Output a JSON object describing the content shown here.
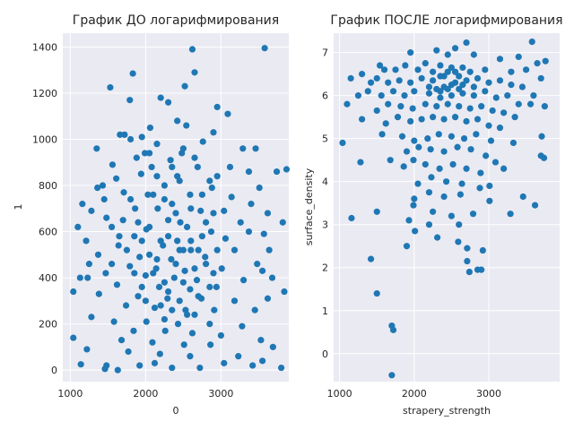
{
  "point_color": "#1f77b4",
  "chart_data": [
    {
      "type": "scatter",
      "title": "График ДО логарифмирования",
      "xlabel": "0",
      "ylabel": "1",
      "xlim": [
        900,
        3900
      ],
      "ylim": [
        -50,
        1460
      ],
      "xticks": [
        1000,
        2000,
        3000
      ],
      "yticks": [
        0,
        200,
        400,
        600,
        800,
        1000,
        1200,
        1400
      ],
      "grid": true,
      "points": [
        [
          3580,
          1395
        ],
        [
          2620,
          1390
        ],
        [
          2650,
          1290
        ],
        [
          1830,
          1285
        ],
        [
          1530,
          1225
        ],
        [
          2520,
          1230
        ],
        [
          2200,
          1180
        ],
        [
          1790,
          1170
        ],
        [
          2300,
          1160
        ],
        [
          2950,
          1140
        ],
        [
          1660,
          1020
        ],
        [
          1720,
          1020
        ],
        [
          2420,
          1080
        ],
        [
          2540,
          1060
        ],
        [
          3090,
          1110
        ],
        [
          2060,
          1050
        ],
        [
          2900,
          1030
        ],
        [
          1800,
          1000
        ],
        [
          2760,
          990
        ],
        [
          2150,
          980
        ],
        [
          1350,
          960
        ],
        [
          2480,
          940
        ],
        [
          3460,
          960
        ],
        [
          3290,
          960
        ],
        [
          1990,
          940
        ],
        [
          1880,
          920
        ],
        [
          2330,
          910
        ],
        [
          1560,
          890
        ],
        [
          2080,
          880
        ],
        [
          2690,
          880
        ],
        [
          3120,
          880
        ],
        [
          3370,
          860
        ],
        [
          3740,
          860
        ],
        [
          3870,
          870
        ],
        [
          1940,
          850
        ],
        [
          2420,
          840
        ],
        [
          1610,
          830
        ],
        [
          1430,
          800
        ],
        [
          1360,
          790
        ],
        [
          2250,
          800
        ],
        [
          2880,
          790
        ],
        [
          3510,
          790
        ],
        [
          1710,
          770
        ],
        [
          2030,
          760
        ],
        [
          1450,
          740
        ],
        [
          2590,
          760
        ],
        [
          3140,
          750
        ],
        [
          3400,
          720
        ],
        [
          1160,
          720
        ],
        [
          1280,
          690
        ],
        [
          1860,
          700
        ],
        [
          2160,
          700
        ],
        [
          2730,
          690
        ],
        [
          3040,
          690
        ],
        [
          3620,
          680
        ],
        [
          1480,
          660
        ],
        [
          1700,
          650
        ],
        [
          2300,
          650
        ],
        [
          2460,
          640
        ],
        [
          3260,
          640
        ],
        [
          3820,
          640
        ],
        [
          1100,
          620
        ],
        [
          1550,
          620
        ],
        [
          2010,
          610
        ],
        [
          2870,
          600
        ],
        [
          3370,
          600
        ],
        [
          3570,
          590
        ],
        [
          1850,
          580
        ],
        [
          2420,
          560
        ],
        [
          3060,
          570
        ],
        [
          1210,
          560
        ],
        [
          1640,
          540
        ],
        [
          2230,
          540
        ],
        [
          2600,
          520
        ],
        [
          3180,
          520
        ],
        [
          3640,
          520
        ],
        [
          1370,
          500
        ],
        [
          1920,
          490
        ],
        [
          2340,
          480
        ],
        [
          2790,
          490
        ],
        [
          3480,
          460
        ],
        [
          1250,
          460
        ],
        [
          1790,
          450
        ],
        [
          2140,
          440
        ],
        [
          2520,
          430
        ],
        [
          3010,
          440
        ],
        [
          3550,
          430
        ],
        [
          1470,
          420
        ],
        [
          2000,
          410
        ],
        [
          2380,
          400
        ],
        [
          2680,
          390
        ],
        [
          1130,
          400
        ],
        [
          1230,
          400
        ],
        [
          3300,
          390
        ],
        [
          3680,
          400
        ],
        [
          1620,
          370
        ],
        [
          2180,
          360
        ],
        [
          2590,
          350
        ],
        [
          2940,
          360
        ],
        [
          1040,
          340
        ],
        [
          3840,
          340
        ],
        [
          1380,
          330
        ],
        [
          1900,
          320
        ],
        [
          2290,
          310
        ],
        [
          2740,
          310
        ],
        [
          3620,
          310
        ],
        [
          3180,
          300
        ],
        [
          1740,
          280
        ],
        [
          2120,
          270
        ],
        [
          2530,
          260
        ],
        [
          2910,
          260
        ],
        [
          3450,
          260
        ],
        [
          1280,
          230
        ],
        [
          1580,
          210
        ],
        [
          2010,
          210
        ],
        [
          2430,
          200
        ],
        [
          2850,
          200
        ],
        [
          3280,
          190
        ],
        [
          1840,
          170
        ],
        [
          2260,
          170
        ],
        [
          2620,
          160
        ],
        [
          3000,
          150
        ],
        [
          3530,
          130
        ],
        [
          1040,
          140
        ],
        [
          1680,
          130
        ],
        [
          2090,
          120
        ],
        [
          2510,
          110
        ],
        [
          2860,
          110
        ],
        [
          3690,
          100
        ],
        [
          1220,
          90
        ],
        [
          1770,
          80
        ],
        [
          2190,
          70
        ],
        [
          2590,
          60
        ],
        [
          3230,
          60
        ],
        [
          3550,
          40
        ],
        [
          1140,
          25
        ],
        [
          1480,
          20
        ],
        [
          1920,
          20
        ],
        [
          2350,
          10
        ],
        [
          2720,
          10
        ],
        [
          1630,
          0
        ],
        [
          1460,
          5
        ],
        [
          2120,
          30
        ],
        [
          3040,
          30
        ],
        [
          3420,
          20
        ],
        [
          3800,
          10
        ],
        [
          1950,
          560
        ],
        [
          2050,
          620
        ],
        [
          2150,
          480
        ],
        [
          2250,
          380
        ],
        [
          2350,
          720
        ],
        [
          2450,
          520
        ],
        [
          2550,
          620
        ],
        [
          2650,
          440
        ],
        [
          2750,
          580
        ],
        [
          2850,
          360
        ],
        [
          2950,
          520
        ],
        [
          2100,
          420
        ],
        [
          2200,
          560
        ],
        [
          2300,
          340
        ],
        [
          2400,
          460
        ],
        [
          2500,
          380
        ],
        [
          2600,
          560
        ],
        [
          2700,
          320
        ],
        [
          2800,
          460
        ],
        [
          2900,
          680
        ],
        [
          2000,
          300
        ],
        [
          2100,
          760
        ],
        [
          2200,
          280
        ],
        [
          2300,
          580
        ],
        [
          2400,
          680
        ],
        [
          2500,
          520
        ],
        [
          2600,
          700
        ],
        [
          2700,
          520
        ],
        [
          2800,
          640
        ],
        [
          2900,
          420
        ],
        [
          2450,
          300
        ],
        [
          2350,
          260
        ],
        [
          2550,
          240
        ],
        [
          2250,
          220
        ],
        [
          2650,
          240
        ],
        [
          2050,
          500
        ],
        [
          1950,
          360
        ],
        [
          1850,
          420
        ],
        [
          1750,
          520
        ],
        [
          1650,
          580
        ],
        [
          1550,
          460
        ],
        [
          1900,
          640
        ],
        [
          1800,
          740
        ],
        [
          2750,
          760
        ],
        [
          2850,
          820
        ],
        [
          2950,
          840
        ],
        [
          2650,
          920
        ],
        [
          2500,
          960
        ],
        [
          2450,
          820
        ],
        [
          2350,
          880
        ],
        [
          2250,
          740
        ],
        [
          2150,
          840
        ],
        [
          2050,
          940
        ],
        [
          1950,
          1010
        ]
      ]
    },
    {
      "type": "scatter",
      "title": "График ПОСЛЕ логарифмирования",
      "xlabel": "strapery_strength",
      "ylabel": "surface_density",
      "xlim": [
        920,
        3950
      ],
      "ylim": [
        -0.65,
        7.45
      ],
      "xticks": [
        1000,
        2000,
        3000
      ],
      "yticks": [
        0,
        1,
        2,
        3,
        4,
        5,
        6,
        7
      ],
      "grid": true,
      "points": [
        [
          2700,
          7.23
        ],
        [
          3580,
          7.25
        ],
        [
          1950,
          7.0
        ],
        [
          2300,
          7.05
        ],
        [
          2450,
          6.95
        ],
        [
          2550,
          7.1
        ],
        [
          2800,
          6.95
        ],
        [
          3150,
          6.85
        ],
        [
          3400,
          6.9
        ],
        [
          3650,
          6.75
        ],
        [
          3760,
          6.8
        ],
        [
          1540,
          6.7
        ],
        [
          1600,
          6.6
        ],
        [
          1750,
          6.6
        ],
        [
          1880,
          6.7
        ],
        [
          2050,
          6.6
        ],
        [
          2150,
          6.75
        ],
        [
          2350,
          6.7
        ],
        [
          2650,
          6.65
        ],
        [
          2950,
          6.6
        ],
        [
          3300,
          6.55
        ],
        [
          3500,
          6.6
        ],
        [
          3700,
          6.4
        ],
        [
          1150,
          6.4
        ],
        [
          1300,
          6.5
        ],
        [
          1420,
          6.3
        ],
        [
          1500,
          6.4
        ],
        [
          1650,
          6.3
        ],
        [
          1800,
          6.35
        ],
        [
          1950,
          6.3
        ],
        [
          2100,
          6.4
        ],
        [
          2250,
          6.35
        ],
        [
          2400,
          6.45
        ],
        [
          2550,
          6.3
        ],
        [
          2700,
          6.35
        ],
        [
          2850,
          6.4
        ],
        [
          3000,
          6.3
        ],
        [
          3150,
          6.35
        ],
        [
          3300,
          6.25
        ],
        [
          3450,
          6.2
        ],
        [
          3600,
          6.0
        ],
        [
          1100,
          5.8
        ],
        [
          1250,
          6.0
        ],
        [
          1380,
          6.1
        ],
        [
          1560,
          6.0
        ],
        [
          1720,
          6.1
        ],
        [
          1870,
          6.0
        ],
        [
          2000,
          6.1
        ],
        [
          2200,
          6.05
        ],
        [
          2350,
          6.1
        ],
        [
          2500,
          6.0
        ],
        [
          2650,
          6.05
        ],
        [
          2800,
          6.0
        ],
        [
          2950,
          6.1
        ],
        [
          3100,
          5.95
        ],
        [
          3250,
          6.0
        ],
        [
          3400,
          5.8
        ],
        [
          3560,
          5.8
        ],
        [
          3750,
          5.75
        ],
        [
          1300,
          5.45
        ],
        [
          1500,
          5.65
        ],
        [
          1650,
          5.8
        ],
        [
          1820,
          5.75
        ],
        [
          1980,
          5.7
        ],
        [
          2150,
          5.8
        ],
        [
          2300,
          5.75
        ],
        [
          2450,
          5.8
        ],
        [
          2600,
          5.75
        ],
        [
          2750,
          5.7
        ],
        [
          2900,
          5.75
        ],
        [
          3050,
          5.65
        ],
        [
          3200,
          5.6
        ],
        [
          3350,
          5.5
        ],
        [
          1620,
          5.35
        ],
        [
          1780,
          5.5
        ],
        [
          1950,
          5.4
        ],
        [
          2100,
          5.45
        ],
        [
          2250,
          5.5
        ],
        [
          2400,
          5.45
        ],
        [
          2550,
          5.5
        ],
        [
          2700,
          5.4
        ],
        [
          2850,
          5.45
        ],
        [
          3000,
          5.3
        ],
        [
          3150,
          5.25
        ],
        [
          1040,
          4.9
        ],
        [
          1570,
          5.1
        ],
        [
          1840,
          5.05
        ],
        [
          2000,
          4.95
        ],
        [
          2180,
          5.0
        ],
        [
          2330,
          5.1
        ],
        [
          2500,
          5.05
        ],
        [
          2670,
          5.0
        ],
        [
          2830,
          5.1
        ],
        [
          3030,
          4.95
        ],
        [
          3330,
          4.9
        ],
        [
          3710,
          5.05
        ],
        [
          1680,
          4.5
        ],
        [
          1900,
          4.7
        ],
        [
          2060,
          4.8
        ],
        [
          2220,
          4.75
        ],
        [
          2400,
          4.7
        ],
        [
          2580,
          4.8
        ],
        [
          2760,
          4.75
        ],
        [
          2960,
          4.6
        ],
        [
          3090,
          4.45
        ],
        [
          3700,
          4.6
        ],
        [
          3740,
          4.55
        ],
        [
          1280,
          4.45
        ],
        [
          1860,
          4.35
        ],
        [
          1990,
          4.5
        ],
        [
          2150,
          4.4
        ],
        [
          2340,
          4.3
        ],
        [
          2520,
          4.4
        ],
        [
          2700,
          4.3
        ],
        [
          2890,
          4.2
        ],
        [
          3200,
          4.3
        ],
        [
          2050,
          3.95
        ],
        [
          2230,
          4.1
        ],
        [
          2430,
          4.0
        ],
        [
          2640,
          3.95
        ],
        [
          2880,
          3.85
        ],
        [
          3010,
          3.9
        ],
        [
          2000,
          3.6
        ],
        [
          2200,
          3.75
        ],
        [
          2400,
          3.65
        ],
        [
          2620,
          3.7
        ],
        [
          3460,
          3.65
        ],
        [
          3010,
          3.55
        ],
        [
          1500,
          3.3
        ],
        [
          1990,
          3.45
        ],
        [
          2250,
          3.3
        ],
        [
          2500,
          3.2
        ],
        [
          2790,
          3.25
        ],
        [
          3290,
          3.25
        ],
        [
          3620,
          3.45
        ],
        [
          1160,
          3.15
        ],
        [
          1930,
          3.1
        ],
        [
          2200,
          3.0
        ],
        [
          2600,
          3.0
        ],
        [
          2010,
          2.85
        ],
        [
          2310,
          2.7
        ],
        [
          2590,
          2.6
        ],
        [
          2710,
          2.45
        ],
        [
          1900,
          2.5
        ],
        [
          2920,
          2.4
        ],
        [
          1420,
          2.2
        ],
        [
          2710,
          2.15
        ],
        [
          2850,
          1.95
        ],
        [
          2900,
          1.95
        ],
        [
          2740,
          1.9
        ],
        [
          1500,
          1.4
        ],
        [
          1700,
          0.65
        ],
        [
          1720,
          0.55
        ],
        [
          1700,
          -0.5
        ],
        [
          2450,
          6.55
        ],
        [
          2500,
          6.25
        ],
        [
          2550,
          6.55
        ],
        [
          2600,
          6.45
        ],
        [
          2650,
          6.25
        ],
        [
          2400,
          6.2
        ],
        [
          2350,
          6.45
        ],
        [
          2300,
          6.15
        ],
        [
          2200,
          6.2
        ],
        [
          2250,
          6.55
        ],
        [
          2750,
          6.55
        ],
        [
          2800,
          6.2
        ],
        [
          2600,
          6.15
        ],
        [
          2500,
          6.65
        ],
        [
          2450,
          6.15
        ],
        [
          2350,
          5.95
        ]
      ]
    }
  ]
}
